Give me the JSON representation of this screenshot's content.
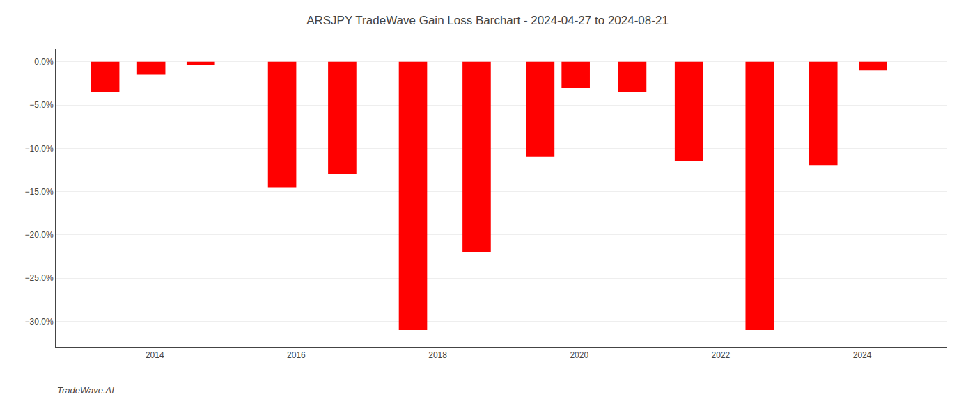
{
  "chart_data": {
    "type": "bar",
    "title": "ARSJPY TradeWave Gain Loss Barchart - 2024-04-27 to 2024-08-21",
    "annotations": [
      "TradeWave.AI"
    ],
    "x": [
      2013.3,
      2013.95,
      2014.65,
      2015.8,
      2016.65,
      2017.65,
      2018.55,
      2019.45,
      2019.95,
      2020.75,
      2021.55,
      2022.55,
      2023.45,
      2024.15
    ],
    "values": [
      -3.5,
      -1.5,
      -0.4,
      -14.5,
      -13.0,
      -31.0,
      -22.0,
      -11.0,
      -3.0,
      -3.5,
      -11.5,
      -31.0,
      -12.0,
      -1.0
    ],
    "color": "#ff0000",
    "xlim": [
      2012.6,
      2025.2
    ],
    "xticks": [
      2014,
      2016,
      2018,
      2020,
      2022,
      2024
    ],
    "ylim": [
      -33,
      1.5
    ],
    "yticks": [
      {
        "value": 0,
        "label": "0.0%"
      },
      {
        "value": -5,
        "label": "−5.0%"
      },
      {
        "value": -10,
        "label": "−10.0%"
      },
      {
        "value": -15,
        "label": "−15.0%"
      },
      {
        "value": -20,
        "label": "−20.0%"
      },
      {
        "value": -25,
        "label": "−25.0%"
      },
      {
        "value": -30,
        "label": "−30.0%"
      }
    ],
    "grid": true
  }
}
